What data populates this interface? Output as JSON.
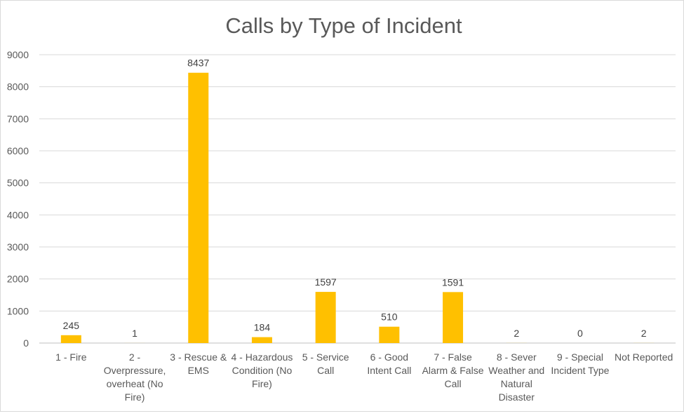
{
  "chart_data": {
    "type": "bar",
    "title": "Calls by Type of Incident",
    "xlabel": "",
    "ylabel": "",
    "ylim": [
      0,
      9000
    ],
    "yticks": [
      0,
      1000,
      2000,
      3000,
      4000,
      5000,
      6000,
      7000,
      8000,
      9000
    ],
    "grid": true,
    "legend": "none",
    "bar_color": "#FFC000",
    "categories": [
      [
        "1 - Fire"
      ],
      [
        "2 -",
        "Overpressure,",
        "overheat (No",
        "Fire)"
      ],
      [
        "3 - Rescue &",
        "EMS"
      ],
      [
        "4 - Hazardous",
        "Condition (No",
        "Fire)"
      ],
      [
        "5 - Service",
        "Call"
      ],
      [
        "6 - Good",
        "Intent Call"
      ],
      [
        "7 - False",
        "Alarm & False",
        "Call"
      ],
      [
        "8 - Sever",
        "Weather and",
        "Natural",
        "Disaster"
      ],
      [
        "9 - Special",
        "Incident Type"
      ],
      [
        "Not Reported"
      ]
    ],
    "values": [
      245,
      1,
      8437,
      184,
      1597,
      510,
      1591,
      2,
      0,
      2
    ]
  }
}
